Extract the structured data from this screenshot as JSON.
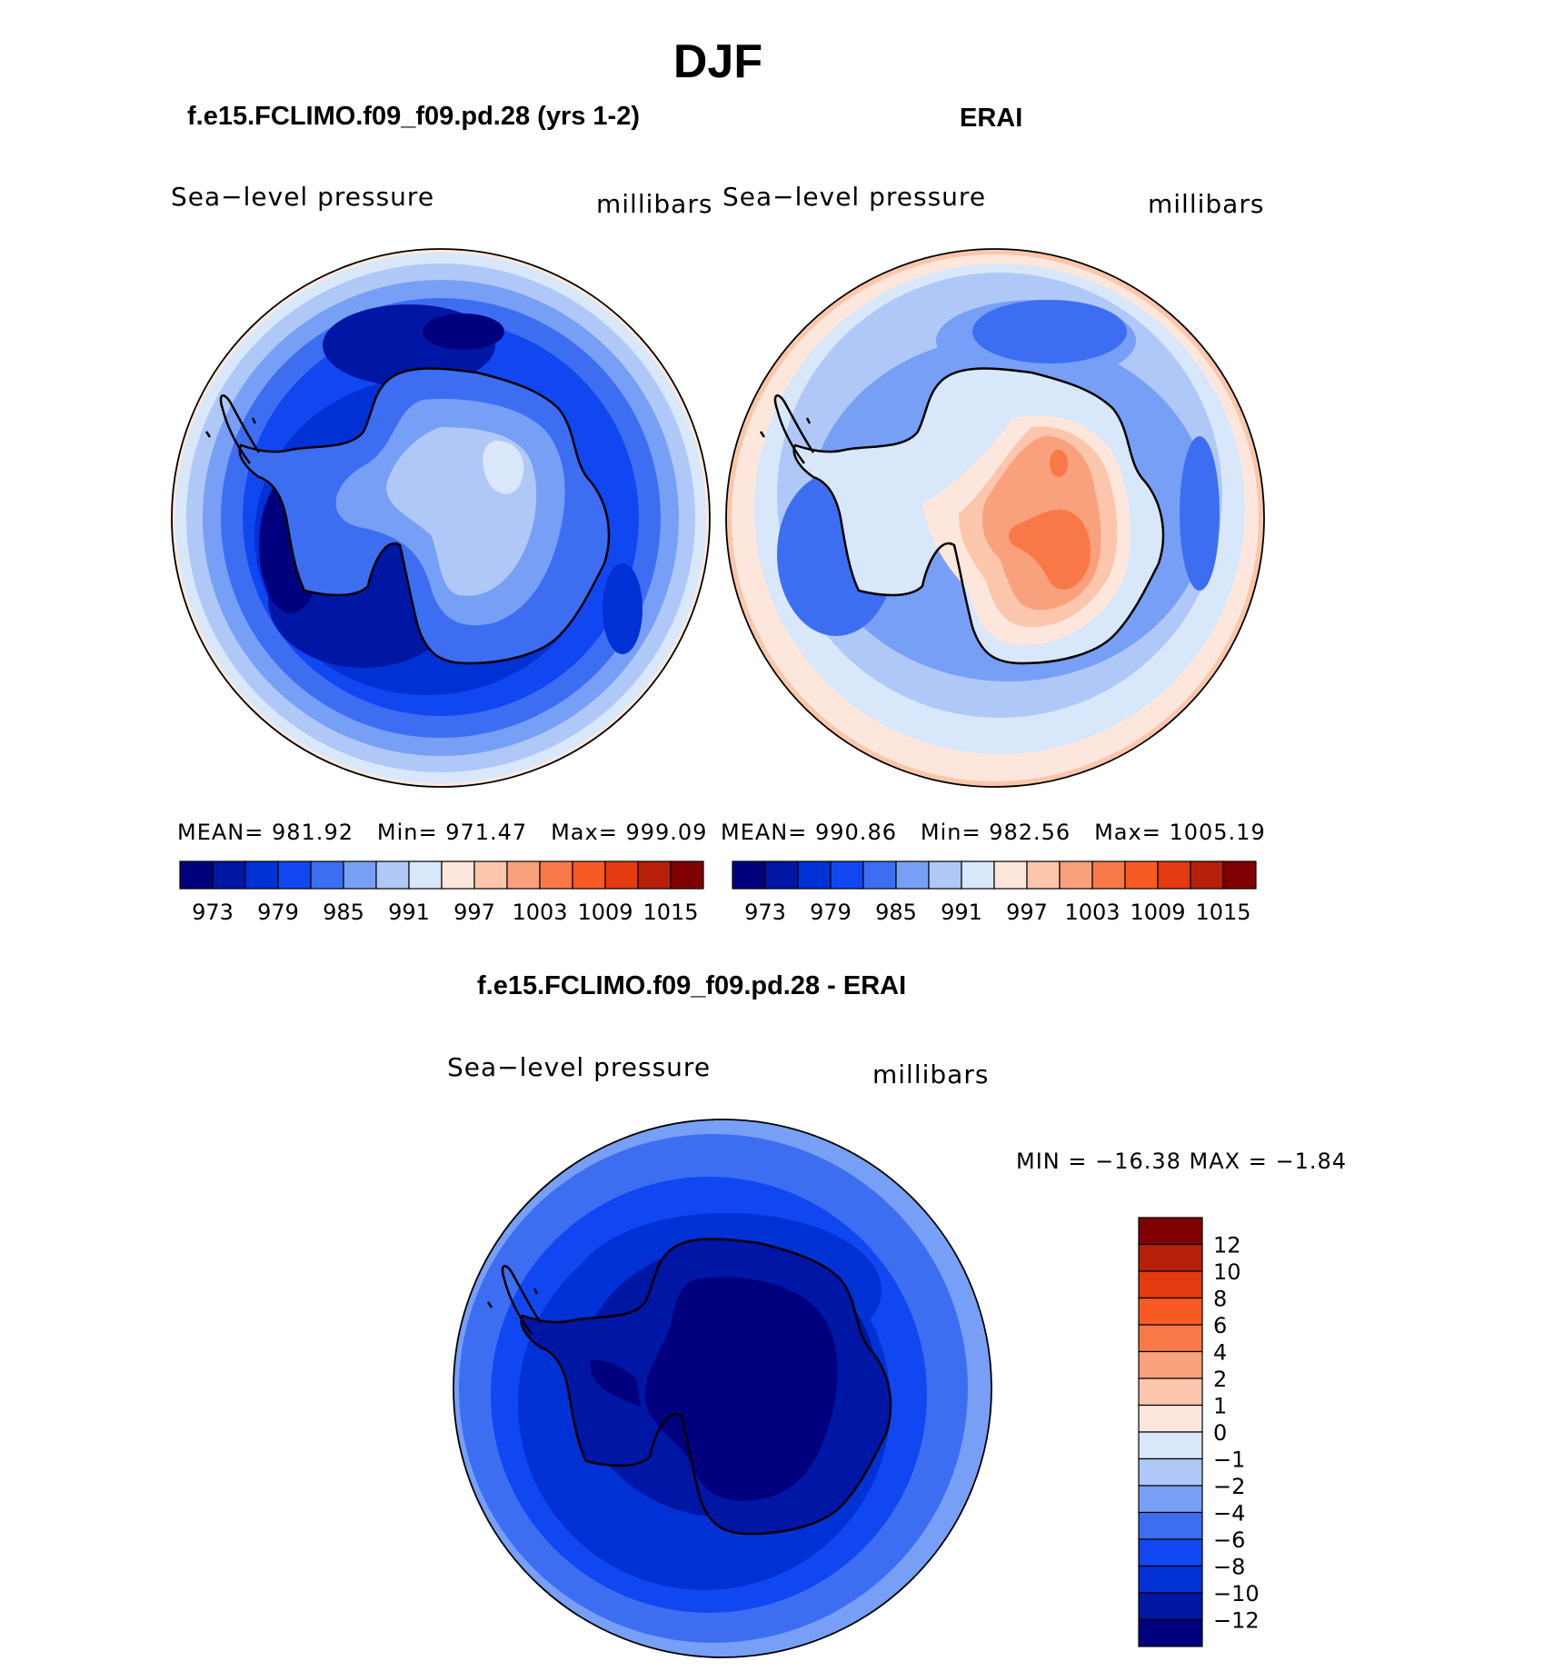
{
  "figure": {
    "title": "DJF"
  },
  "panels": [
    {
      "id": "model",
      "title": "f.e15.FCLIMO.f09_f09.pd.28 (yrs 1-2)",
      "variable": "Sea−level pressure",
      "units": "millibars",
      "stats": {
        "mean_label": "MEAN=",
        "mean": "981.92",
        "min_label": "Min=",
        "min": "971.47",
        "max_label": "Max=",
        "max": "999.09"
      }
    },
    {
      "id": "obs",
      "title": "ERAI",
      "variable": "Sea−level pressure",
      "units": "millibars",
      "stats": {
        "mean_label": "MEAN=",
        "mean": "990.86",
        "min_label": "Min=",
        "min": "982.56",
        "max_label": "Max=",
        "max": "1005.19"
      }
    },
    {
      "id": "diff",
      "title": "f.e15.FCLIMO.f09_f09.pd.28 - ERAI",
      "variable": "Sea−level pressure",
      "units": "millibars",
      "minmax_text": "MIN = −16.38 MAX =  −1.84"
    }
  ],
  "colorbars": {
    "absolute": {
      "colors": [
        "#00007f",
        "#0016a4",
        "#0031d5",
        "#1147f0",
        "#3d6ef2",
        "#779ff5",
        "#b0c8f7",
        "#d9e7fa",
        "#fde7dc",
        "#fbc6ab",
        "#f9a07c",
        "#f87848",
        "#f85a24",
        "#e33a0f",
        "#b6200b",
        "#7f0000"
      ],
      "tick_labels": [
        "973",
        "979",
        "985",
        "991",
        "997",
        "1003",
        "1009",
        "1015"
      ]
    },
    "difference": {
      "colors": [
        "#00007f",
        "#0016a4",
        "#0031d5",
        "#1147f0",
        "#3d6ef2",
        "#779ff5",
        "#b0c8f7",
        "#d9e7fa",
        "#fde7dc",
        "#fbc6ab",
        "#f9a07c",
        "#f87848",
        "#f85a24",
        "#e33a0f",
        "#b6200b",
        "#7f0000"
      ],
      "tick_labels": [
        "12",
        "10",
        "8",
        "6",
        "4",
        "2",
        "1",
        "0",
        "−1",
        "−2",
        "−4",
        "−6",
        "−8",
        "−10",
        "−12"
      ]
    }
  }
}
